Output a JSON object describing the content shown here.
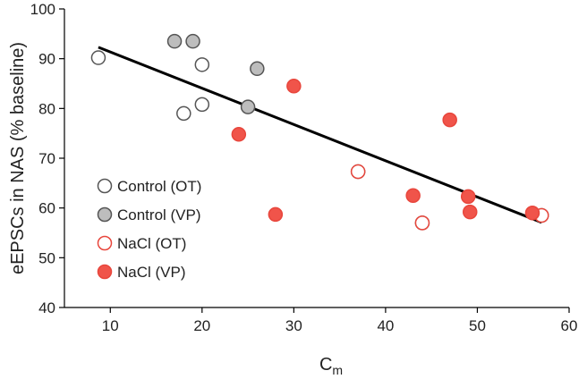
{
  "chart_data": {
    "type": "scatter",
    "title": "",
    "xlabel": "C",
    "xlabel_subscript": "m",
    "ylabel": "eEPSCs in NAS (% baseline)",
    "xlim": [
      5,
      60
    ],
    "ylim": [
      40,
      100
    ],
    "xticks": [
      10,
      20,
      30,
      40,
      50,
      60
    ],
    "yticks": [
      40,
      50,
      60,
      70,
      80,
      90,
      100
    ],
    "grid": false,
    "legend_position": "bottom-left",
    "series": [
      {
        "name": "Control (OT)",
        "marker": "open",
        "color": "#555555",
        "points": [
          [
            8.7,
            90.2
          ],
          [
            18,
            79
          ],
          [
            20,
            88.8
          ],
          [
            20,
            80.8
          ],
          [
            37,
            67.3
          ],
          [
            44,
            57
          ],
          [
            57,
            58.5
          ]
        ]
      },
      {
        "name": "Control (VP)",
        "marker": "filled",
        "color": "#555555",
        "fill": "#bdbdbd",
        "points": [
          [
            17,
            93.5
          ],
          [
            19,
            93.5
          ],
          [
            25,
            80.3
          ],
          [
            26,
            88
          ]
        ]
      },
      {
        "name": "NaCl (OT)",
        "marker": "open",
        "color": "#e8463c",
        "points": [
          [
            37,
            67.3
          ],
          [
            44,
            57
          ],
          [
            57,
            58.5
          ]
        ]
      },
      {
        "name": "NaCl (VP)",
        "marker": "filled",
        "color": "#e8463c",
        "fill": "#f0544a",
        "points": [
          [
            24,
            74.8
          ],
          [
            28,
            58.7
          ],
          [
            30,
            84.5
          ],
          [
            43,
            62.5
          ],
          [
            47,
            77.7
          ],
          [
            49,
            62.3
          ],
          [
            49.2,
            59.2
          ],
          [
            56,
            59
          ]
        ]
      }
    ],
    "fit_line": {
      "x": [
        8.7,
        57
      ],
      "y": [
        92.3,
        57.1
      ],
      "color": "#000000"
    }
  }
}
